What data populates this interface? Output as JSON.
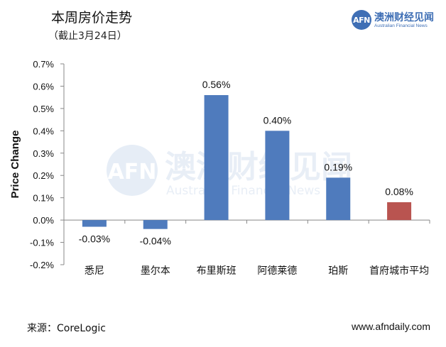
{
  "header": {
    "title": "本周房价走势",
    "subtitle": "（截止3月24日）"
  },
  "logo": {
    "mark": "AFN",
    "name_cn": "澳洲财经见闻",
    "name_en": "Australian Financial News"
  },
  "watermark": {
    "mark": "AFN",
    "name_cn": "澳洲财经见闻",
    "name_en": "Australian Financial News"
  },
  "footer": {
    "source": "来源：CoreLogic",
    "site": "www.afndaily.com"
  },
  "colors": {
    "bar_default": "#4f7bbd",
    "bar_highlight": "#b95450",
    "axis": "#888888"
  },
  "chart_data": {
    "type": "bar",
    "title": "本周房价走势",
    "subtitle": "（截止3月24日）",
    "xlabel": "",
    "ylabel": "Price Change",
    "ylim": [
      -0.2,
      0.7
    ],
    "ytick_labels": [
      "-0.2%",
      "-0.1%",
      "0.0%",
      "0.1%",
      "0.2%",
      "0.3%",
      "0.4%",
      "0.5%",
      "0.6%",
      "0.7%"
    ],
    "yticks": [
      -0.2,
      -0.1,
      0.0,
      0.1,
      0.2,
      0.3,
      0.4,
      0.5,
      0.6,
      0.7
    ],
    "categories": [
      "悉尼",
      "墨尔本",
      "布里斯班",
      "阿德莱德",
      "珀斯",
      "首府城市平均"
    ],
    "values": [
      -0.03,
      -0.04,
      0.56,
      0.4,
      0.19,
      0.08
    ],
    "data_labels": [
      "-0.03%",
      "-0.04%",
      "0.56%",
      "0.40%",
      "0.19%",
      "0.08%"
    ],
    "bar_colors": [
      "#4f7bbd",
      "#4f7bbd",
      "#4f7bbd",
      "#4f7bbd",
      "#4f7bbd",
      "#b95450"
    ],
    "grid": false,
    "legend": "none"
  }
}
